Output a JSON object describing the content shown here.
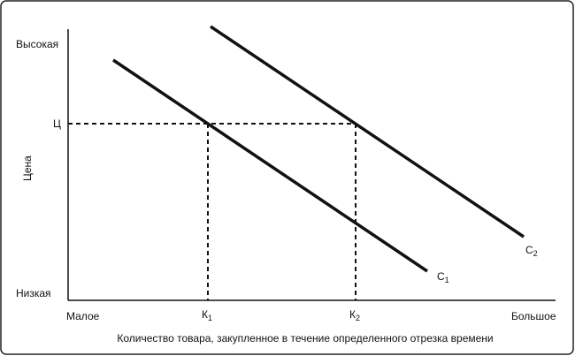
{
  "y_axis": {
    "title": "Цена",
    "high": "Высокая",
    "price": "Ц",
    "low": "Низкая"
  },
  "x_axis": {
    "title": "Количество товара, закупленное в течение определенного отрезка времени",
    "low": "Малое",
    "high": "Большое",
    "k1": {
      "base": "К",
      "sub": "1"
    },
    "k2": {
      "base": "К",
      "sub": "2"
    }
  },
  "curves": [
    {
      "base": "С",
      "sub": "1"
    },
    {
      "base": "С",
      "sub": "2"
    }
  ]
}
